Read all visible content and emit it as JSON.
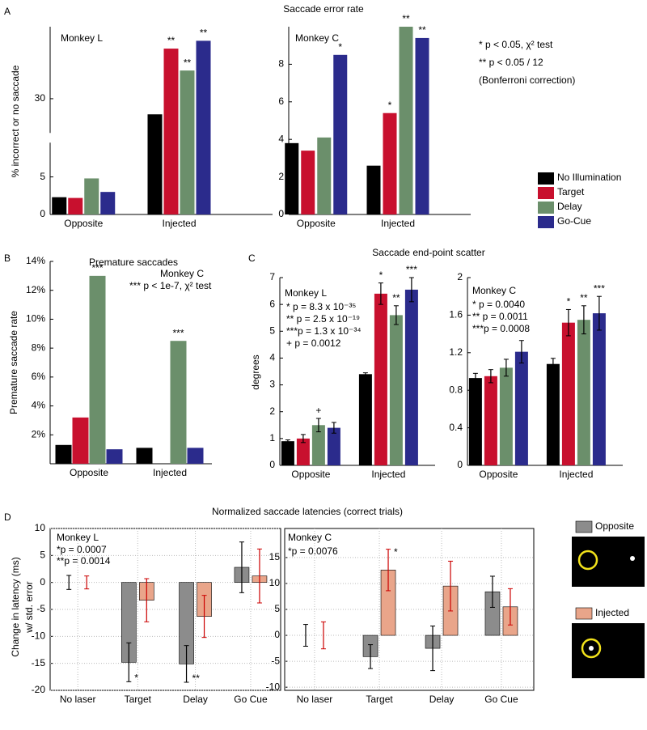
{
  "chart_data": [
    {
      "type": "bar",
      "panel": "A",
      "title": "Saccade error rate",
      "subtitle": "Monkey L",
      "ylabel": [
        "% incorrect or no saccade"
      ],
      "categories": [
        "Opposite",
        "Injected"
      ],
      "series": [
        {
          "name": "No Illumination",
          "color": "#000000",
          "values": [
            2.3,
            25
          ]
        },
        {
          "name": "Target",
          "color": "#c8102e",
          "values": [
            2.2,
            46
          ],
          "markers": [
            null,
            "**"
          ]
        },
        {
          "name": "Delay",
          "color": "#6b8f6b",
          "values": [
            4.8,
            39
          ],
          "markers": [
            null,
            "**"
          ]
        },
        {
          "name": "Go-Cue",
          "color": "#2b2b8c",
          "values": [
            3,
            48.5
          ],
          "markers": [
            null,
            "**"
          ]
        }
      ],
      "ylim": [
        0,
        53
      ],
      "yticks": [
        0,
        5,
        30
      ],
      "y_break": true,
      "marker_color": "#000000",
      "legend": "right"
    },
    {
      "type": "bar",
      "subtitle": "Monkey C",
      "categories": [
        "Opposite",
        "Injected"
      ],
      "series": [
        {
          "color": "#000000",
          "values": [
            3.8,
            2.6
          ]
        },
        {
          "color": "#c8102e",
          "values": [
            3.4,
            5.4
          ],
          "markers": [
            null,
            "*"
          ]
        },
        {
          "color": "#6b8f6b",
          "values": [
            4.1,
            10
          ],
          "markers": [
            null,
            "**"
          ]
        },
        {
          "color": "#2b2b8c",
          "values": [
            8.5,
            9.4
          ],
          "markers": [
            "*",
            "**"
          ]
        }
      ],
      "ylim": [
        0,
        10
      ],
      "yticks": [
        0,
        2,
        4,
        6,
        8
      ],
      "marker_color": "#000000",
      "notes": [
        {
          "text": "* p < 0.05, χ² test"
        },
        {
          "text": "** p < 0.05 / 12"
        },
        {
          "text": "(Bonferroni correction)"
        }
      ]
    },
    {
      "type": "bar",
      "panel": "B",
      "title": "Premature saccades",
      "subtitle": "Monkey C",
      "ylabel": [
        "Premature saccade rate"
      ],
      "notes": [
        {
          "text": "*** p < 1e-7, χ² test"
        }
      ],
      "categories": [
        "Opposite",
        "Injected"
      ],
      "series": [
        {
          "color": "#000000",
          "values": [
            1.3,
            1.1
          ]
        },
        {
          "color": "#c8102e",
          "values": [
            3.2,
            0
          ]
        },
        {
          "color": "#6b8f6b",
          "values": [
            13,
            8.5
          ],
          "markers": [
            "***",
            "***"
          ]
        },
        {
          "color": "#2b2b8c",
          "values": [
            1.0,
            1.1
          ]
        }
      ],
      "ylim": [
        0,
        14
      ],
      "yticks": [
        {
          "value": 2,
          "label": "2%"
        },
        {
          "value": 4,
          "label": "4%"
        },
        {
          "value": 6,
          "label": "6%"
        },
        {
          "value": 8,
          "label": "8%"
        },
        {
          "value": 10,
          "label": "10%"
        },
        {
          "value": 12,
          "label": "12%"
        },
        {
          "value": 14,
          "label": "14%"
        }
      ],
      "marker_color": "#000000"
    },
    {
      "type": "bar",
      "panel": "C",
      "title": "Saccade end-point scatter",
      "subtitle": "Monkey L",
      "ylabel": [
        "degrees"
      ],
      "notes": [
        {
          "text": "*   p = 8.3 x 10⁻³⁵",
          "color": "#c8102e"
        },
        {
          "text": "**  p = 2.5 x 10⁻¹⁹",
          "color": "#6b8f6b"
        },
        {
          "text": "***p = 1.3 x 10⁻³⁴",
          "color": "#2b2b8c"
        },
        {
          "text": "+   p = 0.0012",
          "color": "#333333"
        }
      ],
      "categories": [
        "Opposite",
        "Injected"
      ],
      "series": [
        {
          "color": "#000000",
          "values": [
            0.9,
            3.4
          ],
          "errors": [
            0.05,
            0.05
          ]
        },
        {
          "color": "#c8102e",
          "values": [
            1.0,
            6.4
          ],
          "errors": [
            0.15,
            0.4
          ],
          "markers": [
            null,
            "*"
          ]
        },
        {
          "color": "#6b8f6b",
          "values": [
            1.5,
            5.6
          ],
          "errors": [
            0.25,
            0.35
          ],
          "markers": [
            "+",
            "**"
          ]
        },
        {
          "color": "#2b2b8c",
          "values": [
            1.4,
            6.55
          ],
          "errors": [
            0.2,
            0.45
          ],
          "markers": [
            null,
            "***"
          ]
        }
      ],
      "ylim": [
        0,
        7
      ],
      "yticks": [
        0,
        1,
        2,
        3,
        4,
        5,
        6,
        7
      ]
    },
    {
      "type": "bar",
      "subtitle": "Monkey C",
      "notes": [
        {
          "text": "*    p = 0.0040",
          "color": "#c8102e"
        },
        {
          "text": "**   p = 0.0011",
          "color": "#6b8f6b"
        },
        {
          "text": "***p = 0.0008",
          "color": "#2b2b8c"
        }
      ],
      "categories": [
        "Opposite",
        "Injected"
      ],
      "series": [
        {
          "color": "#000000",
          "values": [
            0.93,
            1.08
          ],
          "errors": [
            0.05,
            0.06
          ]
        },
        {
          "color": "#c8102e",
          "values": [
            0.95,
            1.52
          ],
          "errors": [
            0.07,
            0.14
          ],
          "markers": [
            null,
            "*"
          ]
        },
        {
          "color": "#6b8f6b",
          "values": [
            1.04,
            1.55
          ],
          "errors": [
            0.09,
            0.15
          ],
          "markers": [
            null,
            "**"
          ]
        },
        {
          "color": "#2b2b8c",
          "values": [
            1.21,
            1.62
          ],
          "errors": [
            0.12,
            0.18
          ],
          "markers": [
            null,
            "***"
          ]
        }
      ],
      "ylim": [
        0,
        2
      ],
      "yticks": [
        0,
        0.4,
        0.8,
        1.2,
        1.6,
        2
      ]
    },
    {
      "type": "bar",
      "panel": "D",
      "title": "Normalized saccade latencies (correct trials)",
      "subtitle": "Monkey L",
      "ylabel": [
        "Change in latency (ms)",
        "w/ std. error"
      ],
      "notes": [
        {
          "text": "*p = 0.0007"
        },
        {
          "text": "**p = 0.0014"
        }
      ],
      "categories": [
        "No laser",
        "Target",
        "Delay",
        "Go Cue"
      ],
      "series": [
        {
          "name": "Opposite",
          "color": "#8c8c8c",
          "values": [
            0,
            -14.8,
            -15.1,
            2.8
          ],
          "errors": [
            1.3,
            3.6,
            3.4,
            4.7
          ],
          "markers": [
            null,
            "*",
            "**",
            null
          ]
        },
        {
          "name": "Injected",
          "color": "#e9a58a",
          "error_color": "#cc0000",
          "values": [
            0,
            -3.3,
            -6.3,
            1.2
          ],
          "errors": [
            1.2,
            4.0,
            3.9,
            5.0
          ]
        }
      ],
      "ylim": [
        -20,
        10
      ],
      "yticks": [
        -20,
        -15,
        -10,
        -5,
        0,
        5,
        10
      ],
      "grid": true,
      "marker_color": "#000000",
      "legend": "right"
    },
    {
      "type": "bar",
      "subtitle": "Monkey C",
      "notes": [
        {
          "text": "*p = 0.0076",
          "color": "#cc0000"
        }
      ],
      "categories": [
        "No laser",
        "Target",
        "Delay",
        "Go Cue"
      ],
      "series": [
        {
          "color": "#8c8c8c",
          "values": [
            0,
            -4.1,
            -2.5,
            8.4
          ],
          "errors": [
            2.1,
            2.3,
            4.3,
            3.0
          ]
        },
        {
          "color": "#e9a58a",
          "error_color": "#cc0000",
          "values": [
            0,
            12.6,
            9.5,
            5.5
          ],
          "errors": [
            2.6,
            4.0,
            4.8,
            3.5
          ],
          "markers": [
            null,
            "*",
            null,
            null
          ]
        }
      ],
      "ylim": [
        -10.6,
        20.6
      ],
      "yticks": [
        -10,
        -5,
        0,
        5,
        10,
        15
      ],
      "grid": true
    }
  ]
}
